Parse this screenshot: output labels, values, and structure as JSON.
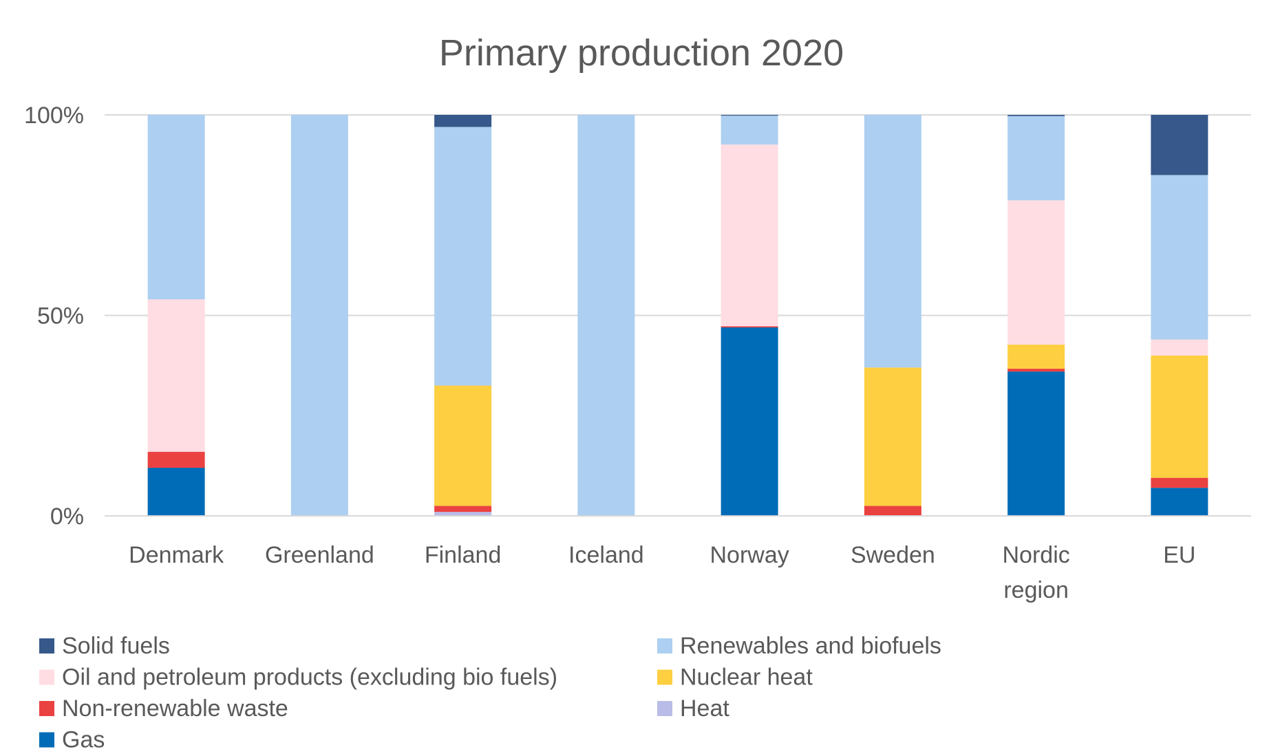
{
  "chart_data": {
    "type": "bar",
    "stacked": true,
    "percent_stacked": true,
    "title": "Primary production 2020",
    "xlabel": "",
    "ylabel": "",
    "ylim": [
      0,
      100
    ],
    "y_ticks": [
      "0%",
      "50%",
      "100%"
    ],
    "y_tick_values": [
      0,
      50,
      100
    ],
    "grid": true,
    "legend_position": "bottom",
    "categories": [
      "Denmark",
      "Greenland",
      "Finland",
      "Iceland",
      "Norway",
      "Sweden",
      "Nordic region",
      "EU"
    ],
    "category_lines": [
      [
        "Denmark"
      ],
      [
        "Greenland"
      ],
      [
        "Finland"
      ],
      [
        "Iceland"
      ],
      [
        "Norway"
      ],
      [
        "Sweden"
      ],
      [
        "Nordic",
        "region"
      ],
      [
        "EU"
      ]
    ],
    "series": [
      {
        "name": "Gas",
        "color": "#006CB7",
        "values": [
          12,
          0,
          0,
          0,
          47,
          0,
          36,
          7
        ]
      },
      {
        "name": "Heat",
        "color": "#B9BCE6",
        "values": [
          0,
          0,
          1,
          0,
          0,
          0,
          0,
          0
        ]
      },
      {
        "name": "Non-renewable waste",
        "color": "#EA4141",
        "values": [
          4,
          0,
          1.5,
          0,
          0.3,
          2.5,
          0.7,
          2.5
        ]
      },
      {
        "name": "Nuclear heat",
        "color": "#FDCF41",
        "values": [
          0,
          0,
          30,
          0,
          0,
          34.5,
          6,
          30.5
        ]
      },
      {
        "name": "Oil and petroleum products (excluding bio fuels)",
        "color": "#FFDDE2",
        "values": [
          38,
          0,
          0,
          0,
          45.3,
          0,
          36,
          4
        ]
      },
      {
        "name": "Renewables and biofuels",
        "color": "#ADCFF1",
        "values": [
          46,
          100,
          64.5,
          100,
          7.2,
          63,
          21,
          41
        ]
      },
      {
        "name": "Solid fuels",
        "color": "#36588A",
        "values": [
          0,
          0,
          3,
          0,
          0.2,
          0,
          0.3,
          15
        ]
      }
    ],
    "legend_order": [
      "Solid fuels",
      "Renewables and biofuels",
      "Oil and petroleum products (excluding bio fuels)",
      "Nuclear heat",
      "Non-renewable waste",
      "Heat",
      "Gas"
    ]
  },
  "colors": {
    "grid": "#D9D9D9",
    "text": "#595959"
  }
}
